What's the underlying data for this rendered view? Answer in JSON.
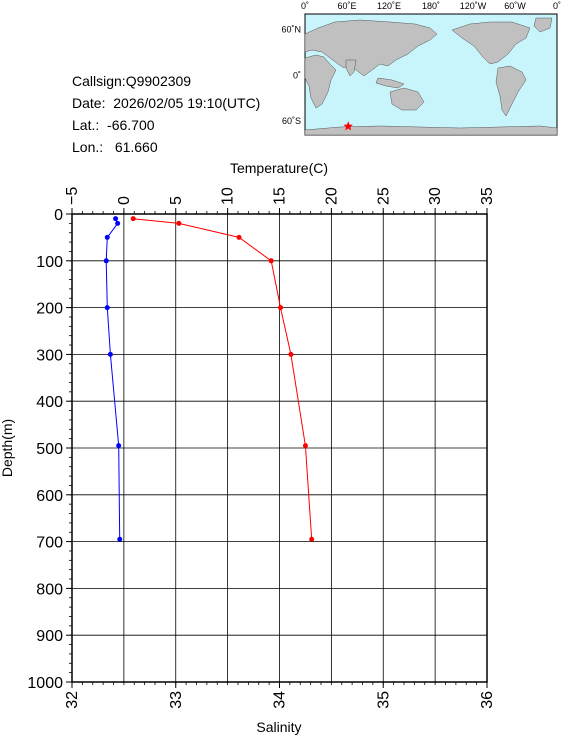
{
  "station": {
    "callsign_label": "Callsign:",
    "callsign": "Q9902309",
    "date_label": "Date:",
    "date": "2026/02/05 19:10(UTC)",
    "lat_label": "Lat.:",
    "lat": "-66.700",
    "lon_label": "Lon.:",
    "lon": "61.660"
  },
  "map": {
    "top_labels": [
      "0˚",
      "60˚E",
      "120˚E",
      "180˚",
      "120˚W",
      "60˚W",
      "0˚"
    ],
    "left_labels": [
      "60˚N",
      "0˚",
      "60˚S"
    ],
    "marker_lon": 61.66,
    "marker_lat": -66.7,
    "colors": {
      "ocean": "#c8f4fc",
      "land": "#c0c0c0",
      "marker": "#ff0000"
    }
  },
  "chart_data": {
    "type": "line",
    "title": "",
    "top_axis": {
      "label": "Temperature(C)",
      "range": [
        -5,
        35
      ],
      "ticks": [
        "−5",
        "0",
        "5",
        "10",
        "15",
        "20",
        "25",
        "30",
        "35"
      ]
    },
    "bottom_axis": {
      "label": "Salinity",
      "range": [
        32,
        36
      ],
      "ticks": [
        "32",
        "33",
        "34",
        "35",
        "36"
      ]
    },
    "y_axis": {
      "label": "Depth(m)",
      "range": [
        0,
        1000
      ],
      "inverted": true,
      "ticks": [
        "0",
        "100",
        "200",
        "300",
        "400",
        "500",
        "600",
        "700",
        "800",
        "900",
        "1000"
      ]
    },
    "grid": true,
    "series": [
      {
        "name": "Temperature",
        "axis": "top",
        "color": "#ff0000",
        "points": [
          {
            "x": 0.9,
            "depth": 10
          },
          {
            "x": 5.3,
            "depth": 20
          },
          {
            "x": 11.1,
            "depth": 50
          },
          {
            "x": 14.2,
            "depth": 100
          },
          {
            "x": 15.1,
            "depth": 200
          },
          {
            "x": 16.1,
            "depth": 300
          },
          {
            "x": 17.5,
            "depth": 495
          },
          {
            "x": 18.1,
            "depth": 695
          }
        ]
      },
      {
        "name": "Salinity",
        "axis": "bottom",
        "color": "#0000ff",
        "points": [
          {
            "x": 32.42,
            "depth": 10
          },
          {
            "x": 32.44,
            "depth": 20
          },
          {
            "x": 32.34,
            "depth": 50
          },
          {
            "x": 32.33,
            "depth": 100
          },
          {
            "x": 32.34,
            "depth": 200
          },
          {
            "x": 32.37,
            "depth": 300
          },
          {
            "x": 32.45,
            "depth": 495
          },
          {
            "x": 32.46,
            "depth": 695
          }
        ]
      }
    ]
  }
}
